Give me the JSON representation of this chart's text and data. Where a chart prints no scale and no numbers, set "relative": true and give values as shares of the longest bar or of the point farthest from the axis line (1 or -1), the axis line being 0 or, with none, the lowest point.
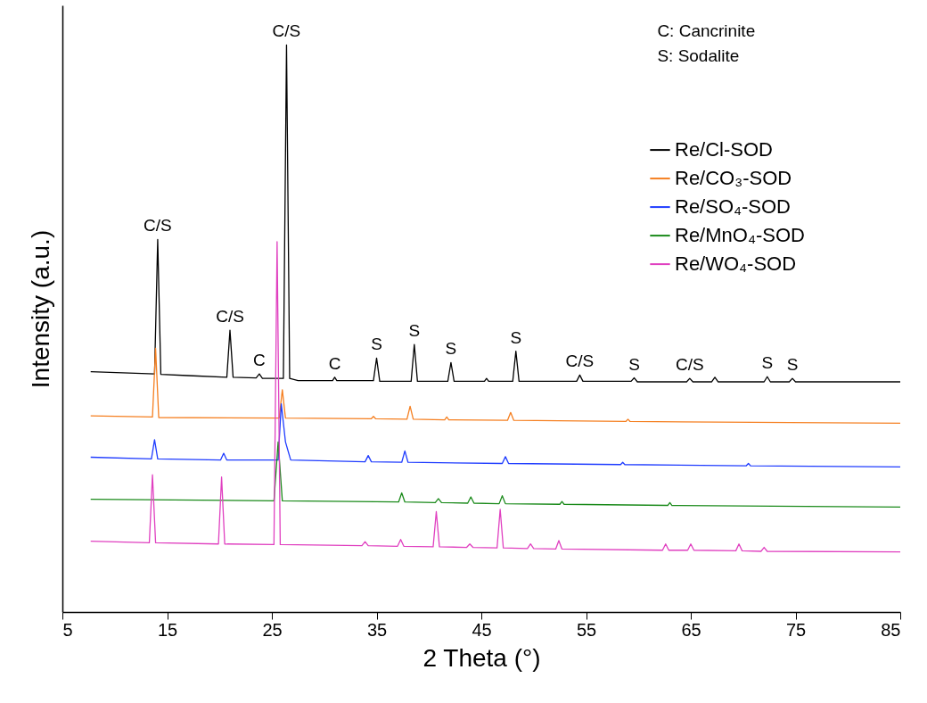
{
  "chart_data": {
    "type": "line",
    "relative": true,
    "xlabel": "2 Theta (°)",
    "ylabel": "Intensity (a.u.)",
    "xlim": [
      5,
      85
    ],
    "xticks": [
      5,
      15,
      25,
      35,
      45,
      55,
      65,
      75,
      85
    ],
    "grid": false,
    "legend": "right",
    "series": [
      {
        "name": "Re/Cl-SOD",
        "color": "#000000",
        "x": [
          7.7,
          13.8,
          14.1,
          14.4,
          17,
          20.7,
          21,
          21.3,
          23.5,
          23.8,
          24.1,
          26.1,
          26.4,
          26.7,
          27.5,
          30.8,
          31,
          31.2,
          34.7,
          35,
          35.3,
          38.3,
          38.6,
          38.9,
          41.8,
          42.1,
          42.4,
          45.3,
          45.5,
          45.7,
          48,
          48.3,
          48.6,
          54.1,
          54.4,
          54.7,
          59.3,
          59.6,
          59.9,
          64.6,
          64.9,
          65.2,
          67,
          67.3,
          67.6,
          72,
          72.3,
          72.6,
          74.4,
          74.7,
          75,
          85
        ],
        "values": [
          0.424,
          0.42,
          0.657,
          0.419,
          0.417,
          0.414,
          0.497,
          0.414,
          0.413,
          0.42,
          0.412,
          0.412,
          1,
          0.412,
          0.408,
          0.408,
          0.414,
          0.408,
          0.408,
          0.448,
          0.407,
          0.407,
          0.472,
          0.407,
          0.407,
          0.44,
          0.407,
          0.407,
          0.412,
          0.407,
          0.407,
          0.46,
          0.407,
          0.407,
          0.418,
          0.407,
          0.407,
          0.413,
          0.406,
          0.406,
          0.412,
          0.406,
          0.406,
          0.414,
          0.406,
          0.406,
          0.415,
          0.406,
          0.406,
          0.412,
          0.406,
          0.406
        ]
      },
      {
        "name": "Re/CO₃-SOD",
        "color": "#f57f20",
        "x": [
          7.7,
          13.6,
          13.9,
          14.2,
          25.7,
          26,
          26.3,
          34.5,
          34.7,
          34.9,
          37.9,
          38.2,
          38.5,
          41.5,
          41.7,
          41.9,
          47.5,
          47.8,
          48.1,
          58.8,
          59,
          59.2,
          85
        ],
        "values": [
          0.346,
          0.344,
          0.465,
          0.343,
          0.342,
          0.392,
          0.342,
          0.341,
          0.345,
          0.341,
          0.34,
          0.363,
          0.34,
          0.339,
          0.344,
          0.339,
          0.338,
          0.352,
          0.338,
          0.336,
          0.34,
          0.336,
          0.333
        ]
      },
      {
        "name": "Re/SO₄-SOD",
        "color": "#1f3cff",
        "x": [
          7.7,
          13.5,
          13.8,
          14.1,
          20.1,
          20.4,
          20.7,
          25.6,
          25.9,
          26.3,
          26.8,
          33.9,
          34.2,
          34.5,
          37.4,
          37.7,
          38,
          47,
          47.3,
          47.6,
          58.3,
          58.5,
          58.7,
          70.3,
          70.5,
          70.7,
          85
        ],
        "values": [
          0.273,
          0.27,
          0.304,
          0.27,
          0.268,
          0.28,
          0.268,
          0.268,
          0.367,
          0.3,
          0.268,
          0.265,
          0.276,
          0.265,
          0.264,
          0.284,
          0.264,
          0.262,
          0.274,
          0.262,
          0.26,
          0.264,
          0.26,
          0.258,
          0.262,
          0.258,
          0.256
        ]
      },
      {
        "name": "Re/MnO₄-SOD",
        "color": "#1a8a1a",
        "x": [
          7.7,
          25.2,
          25.6,
          26,
          37.1,
          37.4,
          37.7,
          40.6,
          40.9,
          41.2,
          43.7,
          44,
          44.3,
          46.7,
          47,
          47.3,
          52.5,
          52.7,
          52.9,
          62.8,
          63,
          63.2,
          85
        ],
        "values": [
          0.199,
          0.196,
          0.3,
          0.196,
          0.194,
          0.21,
          0.194,
          0.193,
          0.2,
          0.193,
          0.192,
          0.203,
          0.192,
          0.191,
          0.205,
          0.191,
          0.19,
          0.195,
          0.19,
          0.188,
          0.193,
          0.188,
          0.185
        ]
      },
      {
        "name": "Re/WO₄-SOD",
        "color": "#e040c0",
        "x": [
          7.7,
          13.3,
          13.6,
          13.9,
          19.9,
          20.2,
          20.5,
          25.2,
          25.5,
          25.8,
          33.6,
          33.9,
          34.2,
          37,
          37.3,
          37.6,
          40.4,
          40.7,
          41,
          43.6,
          43.9,
          44.2,
          46.5,
          46.8,
          47.1,
          49.4,
          49.7,
          50,
          52.1,
          52.4,
          52.7,
          62.3,
          62.6,
          62.9,
          64.7,
          65,
          65.3,
          69.3,
          69.6,
          69.9,
          71.7,
          72,
          72.3,
          85
        ],
        "values": [
          0.125,
          0.122,
          0.242,
          0.122,
          0.12,
          0.238,
          0.12,
          0.119,
          0.653,
          0.119,
          0.117,
          0.124,
          0.117,
          0.116,
          0.128,
          0.116,
          0.115,
          0.177,
          0.115,
          0.114,
          0.12,
          0.114,
          0.113,
          0.181,
          0.113,
          0.112,
          0.12,
          0.112,
          0.111,
          0.126,
          0.111,
          0.109,
          0.12,
          0.109,
          0.109,
          0.12,
          0.109,
          0.108,
          0.12,
          0.108,
          0.107,
          0.114,
          0.107,
          0.106
        ]
      }
    ],
    "annotations": [
      "C: Cancrinite",
      "S: Sodalite",
      {
        "text": "C/S",
        "x": 14.1,
        "y": 0.657
      },
      {
        "text": "C/S",
        "x": 21,
        "y": 0.497
      },
      {
        "text": "C",
        "x": 23.8,
        "y": 0.42
      },
      {
        "text": "C/S",
        "x": 26.4,
        "y": 1
      },
      {
        "text": "C",
        "x": 31,
        "y": 0.414
      },
      {
        "text": "S",
        "x": 35,
        "y": 0.448
      },
      {
        "text": "S",
        "x": 38.6,
        "y": 0.472
      },
      {
        "text": "S",
        "x": 42.1,
        "y": 0.44
      },
      {
        "text": "S",
        "x": 48.3,
        "y": 0.46
      },
      {
        "text": "C/S",
        "x": 54.4,
        "y": 0.418
      },
      {
        "text": "S",
        "x": 59.6,
        "y": 0.413
      },
      {
        "text": "C/S",
        "x": 64.9,
        "y": 0.412
      },
      {
        "text": "S",
        "x": 72.3,
        "y": 0.415
      },
      {
        "text": "S",
        "x": 74.7,
        "y": 0.412
      }
    ]
  }
}
